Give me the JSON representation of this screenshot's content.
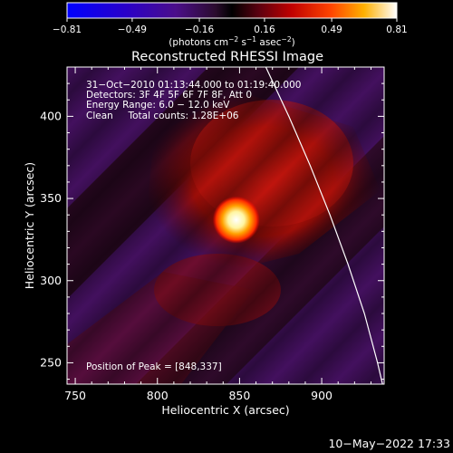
{
  "colorbar": {
    "tick_labels": [
      "−0.81",
      "−0.49",
      "−0.16",
      "0.16",
      "0.49",
      "0.81"
    ],
    "unit_label_parts": [
      "(photons cm",
      "−2",
      " s",
      "−1",
      " asec",
      "−2",
      ")"
    ],
    "range": [
      -0.81,
      0.81
    ]
  },
  "chart_data": {
    "type": "heatmap",
    "title": "Reconstructed RHESSI Image",
    "xlabel": "Heliocentric X (arcsec)",
    "ylabel": "Heliocentric Y (arcsec)",
    "xlim": [
      745,
      938
    ],
    "ylim": [
      237,
      430
    ],
    "xticks": [
      750,
      800,
      850,
      900
    ],
    "yticks": [
      250,
      300,
      350,
      400
    ],
    "xtick_labels": [
      "750",
      "800",
      "850",
      "900"
    ],
    "ytick_labels": [
      "250",
      "300",
      "350",
      "400"
    ],
    "annotations": [
      "31−Oct−2010 01:13:44.000 to 01:19:40.000",
      "Detectors: 3F 4F 5F 6F 7F 8F, Att 0",
      "Energy Range: 6.0 − 12.0 keV",
      "Clean     Total counts: 1.28E+06"
    ],
    "peak_label": "Position of Peak = [848,337]",
    "peak": [
      848,
      337
    ],
    "limb_curve": [
      [
        866,
        430
      ],
      [
        880,
        400
      ],
      [
        893,
        370
      ],
      [
        905,
        340
      ],
      [
        916,
        310
      ],
      [
        926,
        280
      ],
      [
        934,
        250
      ],
      [
        937,
        237
      ]
    ]
  },
  "footer": {
    "timestamp": "10−May−2022 17:33"
  }
}
